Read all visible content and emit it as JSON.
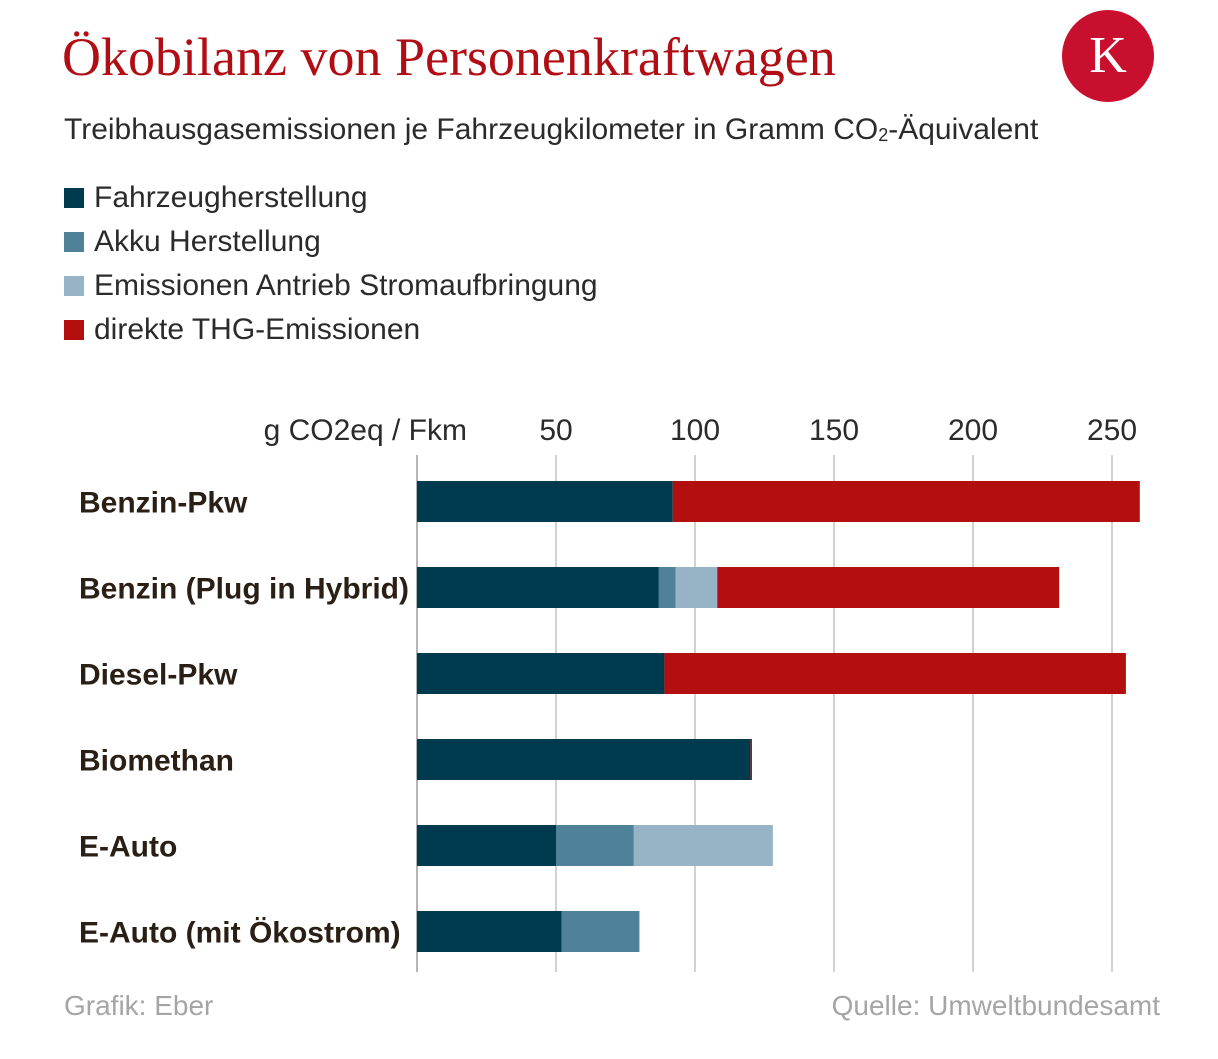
{
  "header": {
    "title": "Ökobilanz von Personenkraftwagen",
    "title_color": "#b00d14",
    "logo_letter": "K",
    "logo_color": "#c8102e",
    "subtitle_main": "Treibhausgasemissionen je Fahrzeugkilometer in Gramm CO",
    "subtitle_sub": "2",
    "subtitle_end": "-Äquivalent"
  },
  "chart_data": {
    "type": "bar",
    "orientation": "horizontal",
    "stacked": true,
    "unit_label": "g CO2eq / Fkm",
    "categories": [
      "Benzin-Pkw",
      "Benzin (Plug in Hybrid)",
      "Diesel-Pkw",
      "Biomethan",
      "E-Auto",
      "E-Auto (mit Ökostrom)"
    ],
    "series": [
      {
        "name": "Fahrzeugherstellung",
        "color": "#003a4f",
        "values": [
          92,
          87,
          89,
          120,
          50,
          52
        ]
      },
      {
        "name": "Akku Herstellung",
        "color": "#4f8298",
        "values": [
          0,
          6,
          0,
          0,
          28,
          28
        ]
      },
      {
        "name": "Emissionen Antrieb Stromaufbringung",
        "color": "#96b4c5",
        "values": [
          0,
          15,
          0,
          0,
          50,
          0
        ]
      },
      {
        "name": "direkte THG-Emissionen",
        "color": "#b40f0f",
        "values": [
          168,
          123,
          166,
          0.5,
          0,
          0
        ]
      }
    ],
    "xlim": [
      0,
      260
    ],
    "ticks": [
      50,
      100,
      150,
      200,
      250
    ],
    "grid": true,
    "legend_position": "top-left"
  },
  "footer": {
    "credit": "Grafik: Eber",
    "source": "Quelle: Umweltbundesamt"
  }
}
